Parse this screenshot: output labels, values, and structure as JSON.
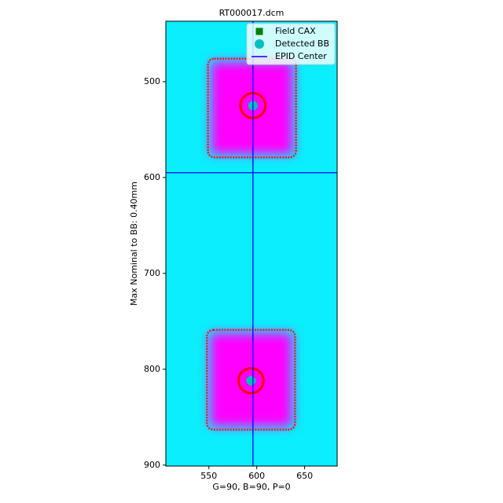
{
  "chart_data": {
    "type": "image",
    "title": "RT000017.dcm",
    "xlabel": "G=90, B=90, P=0",
    "ylabel": "Max Nominal to BB: 0.40mm",
    "xlim": [
      505,
      684
    ],
    "ylim": [
      437,
      901
    ],
    "y_inverted": true,
    "xticks": [
      550,
      600,
      650
    ],
    "yticks": [
      500,
      600,
      700,
      800,
      900
    ],
    "background_color": "#0aeefe",
    "field_color": "#ff00ff",
    "edge_color": "#e0202a",
    "fields": [
      {
        "xlim": [
          549,
          641
        ],
        "ylim": [
          476,
          579
        ]
      },
      {
        "xlim": [
          548,
          640
        ],
        "ylim": [
          759,
          863
        ]
      }
    ],
    "bb_ring_radius": 13,
    "bb_ring_color": "#ff0000",
    "series": [
      {
        "name": "Field CAX",
        "color": "#008000",
        "marker": "square",
        "x": [
          596,
          594
        ],
        "y": [
          525,
          812
        ]
      },
      {
        "name": "Detected BB",
        "color": "#00bfbf",
        "marker": "circle",
        "x": [
          596,
          594
        ],
        "y": [
          525,
          812
        ]
      },
      {
        "name": "EPID Center",
        "color": "#0000ff",
        "marker": "line",
        "x": [
          596
        ],
        "y": [
          595
        ]
      }
    ],
    "legend": "upper right"
  }
}
